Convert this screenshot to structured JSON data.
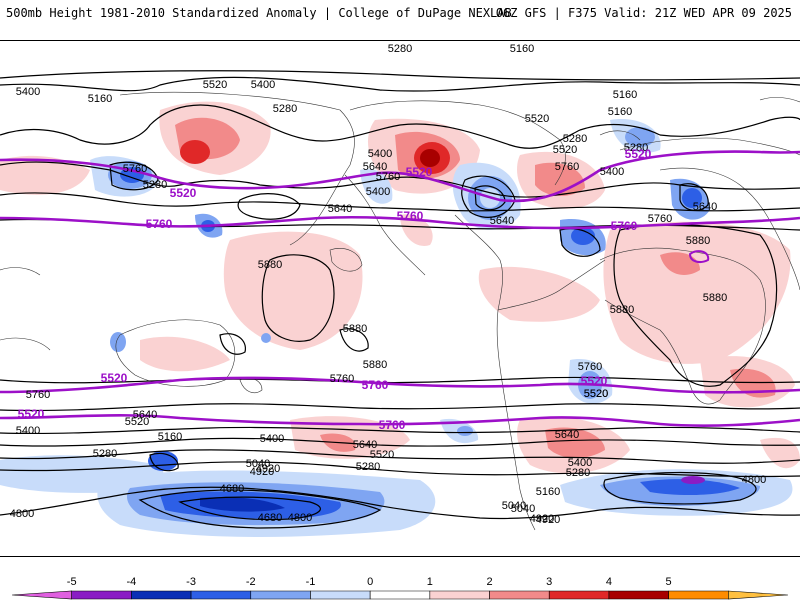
{
  "header": {
    "left_title": "500mb Height 1981-2010 Standardized Anomaly | College of DuPage NEXLAB",
    "right_title": "06Z GFS | F375 Valid: 21Z WED APR 09 2025"
  },
  "map": {
    "projection": "cylindrical equidistant",
    "contour_labels_black": [
      "5280",
      "5160",
      "5160",
      "5280",
      "5400",
      "5160",
      "5520",
      "5400",
      "5280",
      "5640",
      "5760",
      "5400",
      "5640",
      "5760",
      "5520",
      "5520",
      "5280",
      "5760",
      "5640",
      "5400",
      "5640",
      "5760",
      "5880",
      "5880",
      "5880",
      "5880",
      "5880",
      "5880",
      "5760",
      "5760",
      "5640",
      "5520",
      "5400",
      "5280",
      "5160",
      "5040",
      "4920",
      "4800",
      "4680",
      "4800",
      "4680",
      "4920",
      "5400",
      "5520",
      "5640",
      "5280",
      "5040",
      "4920",
      "5160",
      "5640",
      "5280",
      "5400",
      "5520",
      "5040",
      "4920",
      "4800",
      "5760",
      "5520",
      "5400",
      "5160",
      "5280"
    ],
    "contour_labels_purple": [
      "5520",
      "5760",
      "5520",
      "5760",
      "5520",
      "5760",
      "5760",
      "5520",
      "5520",
      "5760",
      "5520"
    ]
  },
  "colorbar": {
    "tick_labels": [
      "-5",
      "-4",
      "-3",
      "-2",
      "-1",
      "0",
      "1",
      "2",
      "3",
      "4",
      "5"
    ],
    "colors": [
      "#e060e0",
      "#8a1cc4",
      "#0a2fb5",
      "#2d5fe6",
      "#7fa5f2",
      "#c8dcfa",
      "#ffffff",
      "#fad2d2",
      "#f28a8a",
      "#e02828",
      "#a80000",
      "#ff8c00",
      "#ffc040"
    ]
  }
}
